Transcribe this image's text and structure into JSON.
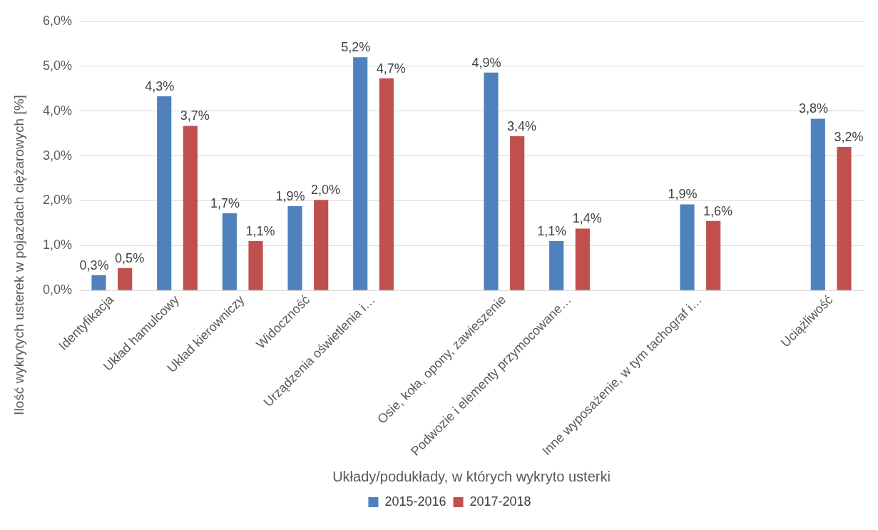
{
  "chart_data": {
    "type": "bar",
    "xlabel": "Układy/podukłady, w których wykryto usterki",
    "ylabel": "Ilość wykrytych usterek w pojazdach ciężarowych [%]",
    "categories": [
      "Identyfikacja",
      "Układ hamulcowy",
      "Układ kierowniczy",
      "Widoczność",
      "Urządzenia oświetlenia i…",
      null,
      "Osie, koła, opony, zawieszenie",
      "Podwozie i elementy przymocowane…",
      null,
      "Inne wyposażenie, w tym tachograf i…",
      null,
      "Uciążliwość"
    ],
    "series": [
      {
        "name": "2015-2016",
        "color": "#4f81bd",
        "values": [
          0.34,
          4.33,
          1.72,
          1.88,
          5.2,
          null,
          4.86,
          1.1,
          null,
          1.92,
          null,
          3.83
        ],
        "value_labels": [
          "0,3%",
          "4,3%",
          "1,7%",
          "1,9%",
          "5,2%",
          null,
          "4,9%",
          "1,1%",
          null,
          "1,9%",
          null,
          "3,8%"
        ]
      },
      {
        "name": "2017-2018",
        "color": "#c0504d",
        "values": [
          0.5,
          3.67,
          1.1,
          2.02,
          4.73,
          null,
          3.44,
          1.38,
          null,
          1.55,
          null,
          3.2
        ],
        "value_labels": [
          "0,5%",
          "3,7%",
          "1,1%",
          "2,0%",
          "4,7%",
          null,
          "3,4%",
          "1,4%",
          null,
          "1,6%",
          null,
          "3,2%"
        ]
      }
    ],
    "ylim": [
      0,
      6
    ],
    "yticks": [
      {
        "value": 0,
        "label": "0,0%"
      },
      {
        "value": 1,
        "label": "1,0%"
      },
      {
        "value": 2,
        "label": "2,0%"
      },
      {
        "value": 3,
        "label": "3,0%"
      },
      {
        "value": 4,
        "label": "4,0%"
      },
      {
        "value": 5,
        "label": "5,0%"
      },
      {
        "value": 6,
        "label": "6,0%"
      }
    ],
    "grid": "y",
    "legend": "bottom"
  }
}
